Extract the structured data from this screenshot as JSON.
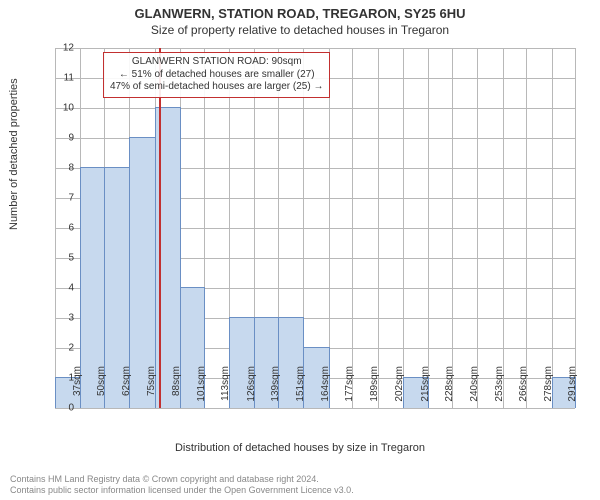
{
  "header": {
    "title": "GLANWERN, STATION ROAD, TREGARON, SY25 6HU",
    "subtitle": "Size of property relative to detached houses in Tregaron"
  },
  "chart": {
    "type": "histogram",
    "ylabel": "Number of detached properties",
    "xlabel": "Distribution of detached houses by size in Tregaron",
    "ylim_max": 12,
    "ytick_step": 1,
    "background_color": "#ffffff",
    "grid_color": "#b8b8b8",
    "bar_fill": "#c7d9ee",
    "bar_border": "#6a8fc4",
    "marker_color": "#c23030",
    "marker_x_value": 90,
    "bar_width_ratio": 1.0,
    "categories": [
      "37sqm",
      "50sqm",
      "62sqm",
      "75sqm",
      "88sqm",
      "101sqm",
      "113sqm",
      "126sqm",
      "139sqm",
      "151sqm",
      "164sqm",
      "177sqm",
      "189sqm",
      "202sqm",
      "215sqm",
      "228sqm",
      "240sqm",
      "253sqm",
      "266sqm",
      "278sqm",
      "291sqm"
    ],
    "x_starts": [
      37,
      50,
      62,
      75,
      88,
      101,
      113,
      126,
      139,
      151,
      164,
      177,
      189,
      202,
      215,
      228,
      240,
      253,
      266,
      278,
      291
    ],
    "x_range_end": 303,
    "values": [
      1,
      8,
      8,
      9,
      10,
      4,
      0,
      3,
      3,
      3,
      2,
      0,
      0,
      0,
      1,
      0,
      0,
      0,
      0,
      0,
      1
    ],
    "annotation": {
      "line1": "GLANWERN STATION ROAD: 90sqm",
      "line2": "← 51% of detached houses are smaller (27)",
      "line3": "47% of semi-detached houses are larger (25) →",
      "border_color": "#c23030",
      "fontsize": 10
    }
  },
  "footer": {
    "line1": "Contains HM Land Registry data © Crown copyright and database right 2024.",
    "line2": "Contains public sector information licensed under the Open Government Licence v3.0."
  }
}
